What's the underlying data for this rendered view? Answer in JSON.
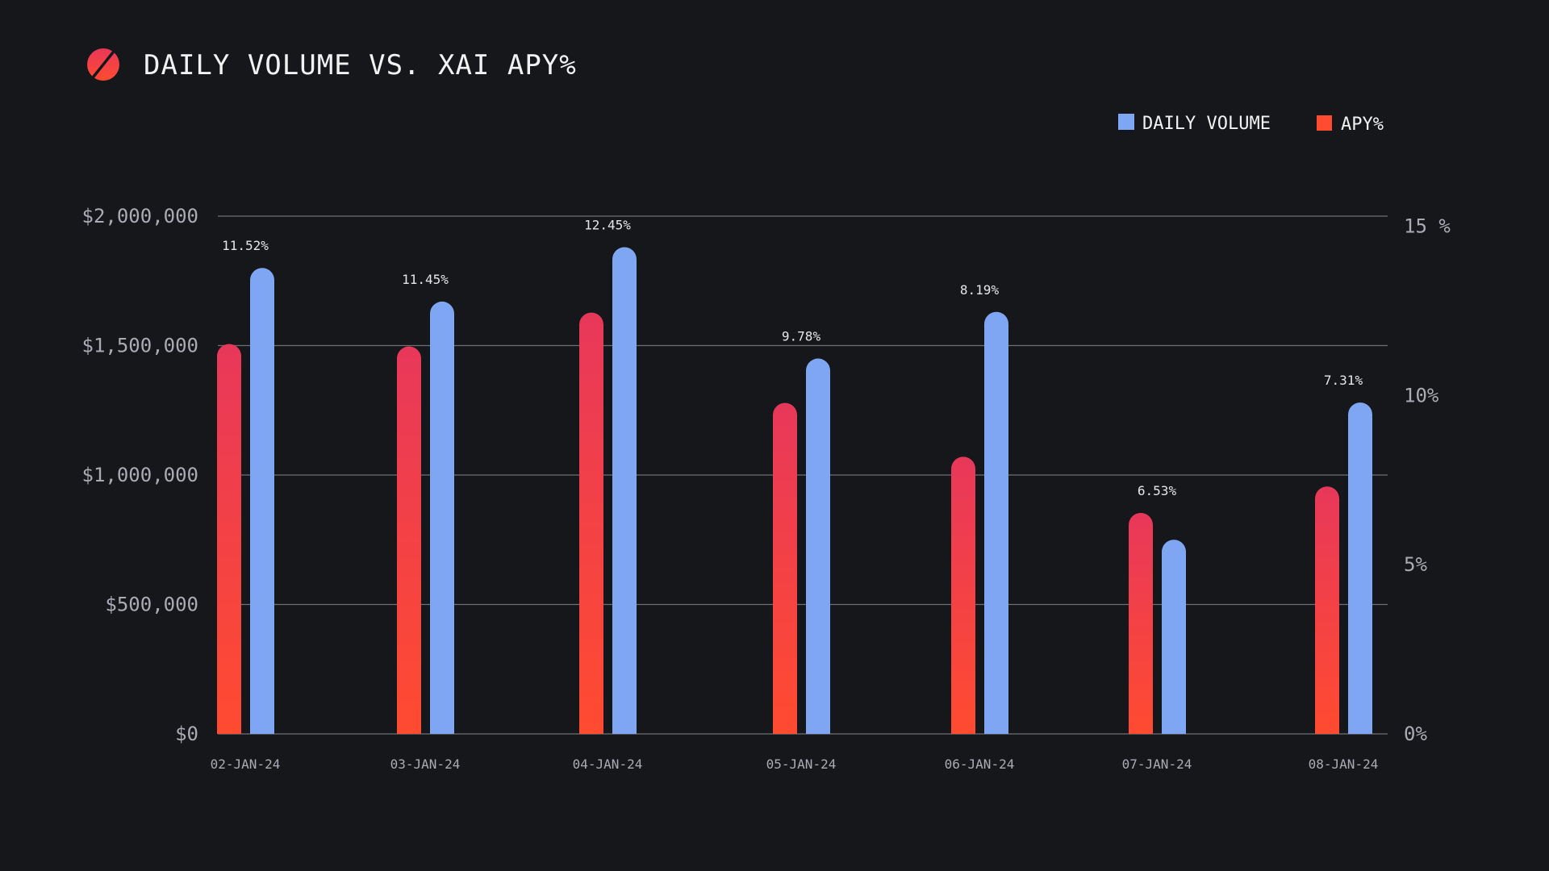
{
  "colors": {
    "background": "#16171b",
    "volume": "#7fa6f2",
    "apy_top": "#e8385a",
    "apy_bottom": "#ff4b30",
    "grid": "#6d6f76",
    "axis_text": "#a9acb5",
    "title_text": "#f2f2f2"
  },
  "header": {
    "icon": "slash-circle-icon",
    "title": "DAILY VOLUME VS. XAI APY%"
  },
  "legend": {
    "volume_label": "DAILY VOLUME",
    "apy_label": "APY%"
  },
  "chart_data": {
    "type": "bar",
    "title": "DAILY VOLUME VS. XAI APY%",
    "categories": [
      "02-JAN-24",
      "03-JAN-24",
      "04-JAN-24",
      "05-JAN-24",
      "06-JAN-24",
      "07-JAN-24",
      "08-JAN-24"
    ],
    "series": [
      {
        "name": "DAILY VOLUME",
        "axis": "left",
        "values": [
          1800000,
          1670000,
          1880000,
          1450000,
          1630000,
          750000,
          1280000
        ]
      },
      {
        "name": "APY%",
        "axis": "right",
        "values": [
          11.52,
          11.45,
          12.45,
          9.78,
          8.19,
          6.53,
          7.31
        ],
        "labels": [
          "11.52%",
          "11.45%",
          "12.45%",
          "9.78%",
          "8.19%",
          "6.53%",
          "7.31%"
        ]
      }
    ],
    "left_axis": {
      "ticks": [
        0,
        500000,
        1000000,
        1500000,
        2000000
      ],
      "tick_labels": [
        "$0",
        "$500,000",
        "$1,000,000",
        "$1,500,000",
        "$2,000,000"
      ]
    },
    "right_axis": {
      "ticks": [
        0,
        5,
        10,
        15
      ],
      "tick_labels": [
        "0%",
        "5%",
        "10%",
        "15 %"
      ]
    },
    "legend_position": "top-right",
    "grid": true
  }
}
